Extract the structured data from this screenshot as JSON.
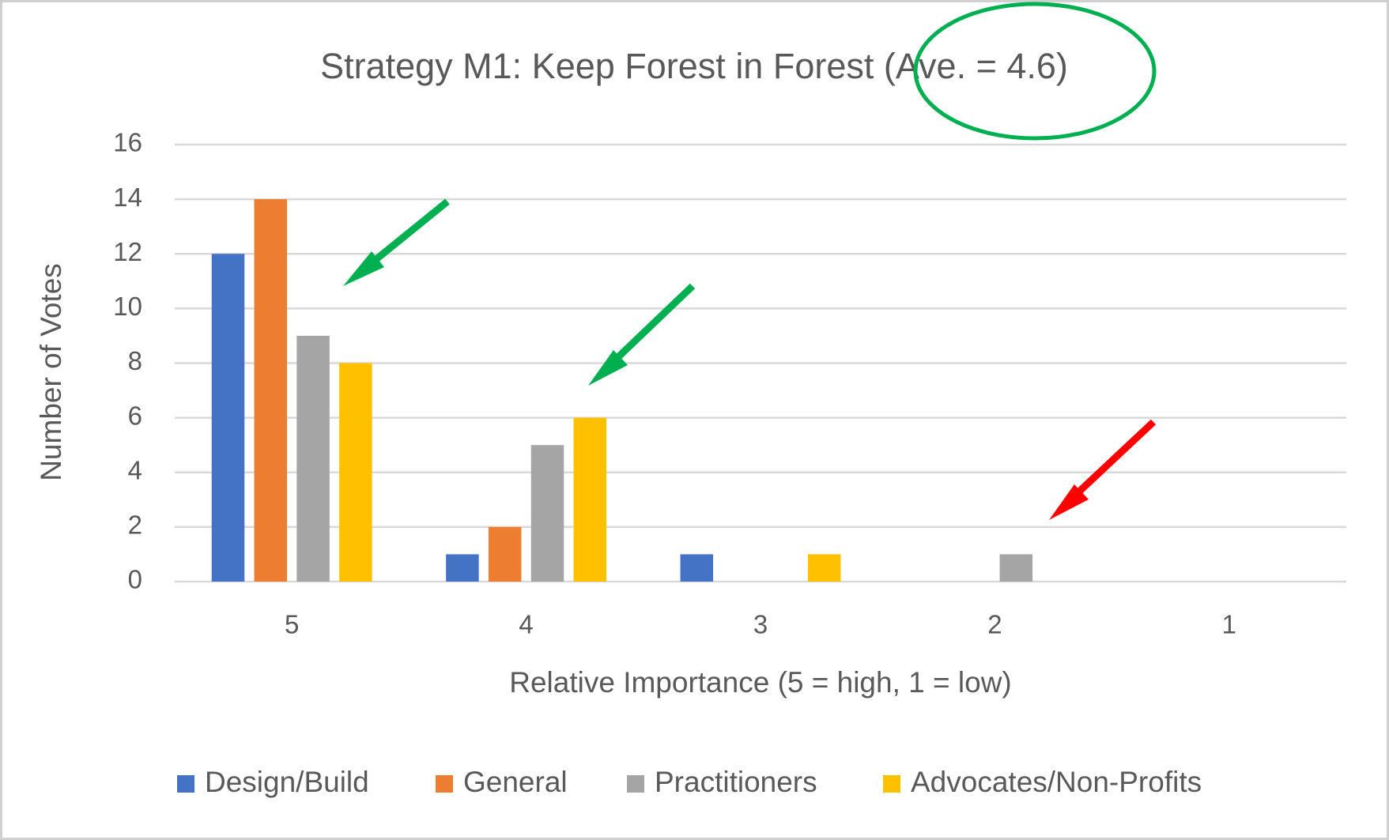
{
  "chart_data": {
    "type": "bar",
    "title": "Strategy M1: Keep Forest in Forest (Ave. = 4.6)",
    "x_label": "Relative Importance (5 = high, 1 = low)",
    "y_label": "Number of Votes",
    "categories": [
      "5",
      "4",
      "3",
      "2",
      "1"
    ],
    "series": [
      {
        "name": "Design/Build",
        "color": "#4472c4",
        "values": [
          12,
          1,
          1,
          0,
          0
        ]
      },
      {
        "name": "General",
        "color": "#ed7d31",
        "values": [
          14,
          2,
          0,
          0,
          0
        ]
      },
      {
        "name": "Practitioners",
        "color": "#a5a5a5",
        "values": [
          9,
          5,
          0,
          1,
          0
        ]
      },
      {
        "name": "Advocates/Non-Profits",
        "color": "#ffc000",
        "values": [
          8,
          6,
          1,
          0,
          0
        ]
      }
    ],
    "ylim": [
      0,
      16
    ],
    "yticks": [
      0,
      2,
      4,
      6,
      8,
      10,
      12,
      14,
      16
    ],
    "grid": true,
    "legend": "bottom"
  }
}
